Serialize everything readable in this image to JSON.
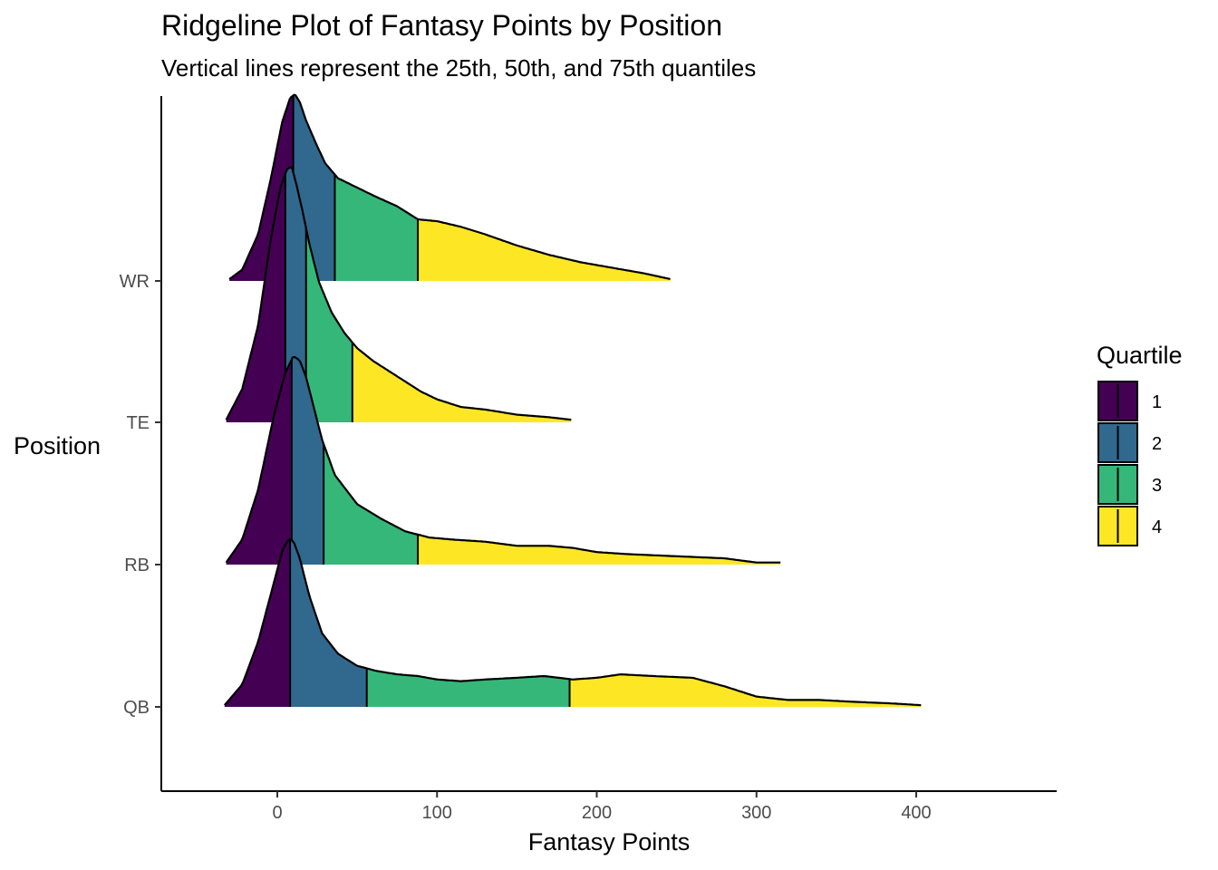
{
  "chart_data": {
    "type": "ridgeline",
    "title": "Ridgeline Plot of Fantasy Points by Position",
    "subtitle": "Vertical lines represent the 25th, 50th, and 75th quantiles",
    "xlabel": "Fantasy Points",
    "ylabel": "Position",
    "xlim": [
      -72,
      488
    ],
    "x_ticks": [
      0,
      100,
      200,
      300,
      400
    ],
    "categories": [
      "QB",
      "RB",
      "TE",
      "WR"
    ],
    "legend": {
      "title": "Quartile",
      "position": "right",
      "entries": [
        {
          "label": "1",
          "color": "#440154"
        },
        {
          "label": "2",
          "color": "#31688E"
        },
        {
          "label": "3",
          "color": "#35B779"
        },
        {
          "label": "4",
          "color": "#FDE725"
        }
      ]
    },
    "grid": false,
    "series": [
      {
        "category": "QB",
        "quantiles": [
          8,
          56,
          183
        ],
        "density_x": [
          -33,
          -22,
          -12,
          -2,
          3,
          7,
          10,
          14,
          20,
          28,
          38,
          50,
          62,
          75,
          88,
          100,
          115,
          130,
          150,
          167,
          185,
          200,
          215,
          235,
          260,
          280,
          300,
          320,
          340,
          360,
          385,
          403
        ],
        "density_y": [
          0.01,
          0.13,
          0.38,
          0.73,
          0.91,
          0.98,
          0.97,
          0.87,
          0.65,
          0.43,
          0.31,
          0.24,
          0.21,
          0.19,
          0.18,
          0.16,
          0.15,
          0.16,
          0.17,
          0.18,
          0.16,
          0.17,
          0.19,
          0.18,
          0.17,
          0.12,
          0.06,
          0.04,
          0.04,
          0.03,
          0.02,
          0.01
        ]
      },
      {
        "category": "RB",
        "quantiles": [
          9,
          29,
          88
        ],
        "density_x": [
          -32,
          -22,
          -12,
          -2,
          5,
          10,
          14,
          18,
          22,
          28,
          36,
          50,
          65,
          80,
          95,
          110,
          130,
          150,
          170,
          185,
          200,
          220,
          250,
          280,
          300,
          315
        ],
        "density_y": [
          0.01,
          0.12,
          0.36,
          0.72,
          0.92,
          1.0,
          0.98,
          0.9,
          0.78,
          0.6,
          0.43,
          0.29,
          0.22,
          0.16,
          0.13,
          0.12,
          0.11,
          0.09,
          0.09,
          0.08,
          0.06,
          0.05,
          0.04,
          0.03,
          0.01,
          0.01
        ]
      },
      {
        "category": "TE",
        "quantiles": [
          5,
          18,
          47
        ],
        "density_x": [
          -32,
          -22,
          -12,
          -4,
          2,
          6,
          9,
          12,
          16,
          20,
          26,
          34,
          42,
          50,
          60,
          70,
          80,
          90,
          100,
          115,
          130,
          150,
          170,
          184
        ],
        "density_y": [
          0.01,
          0.13,
          0.38,
          0.72,
          0.92,
          0.99,
          1.0,
          0.93,
          0.82,
          0.7,
          0.55,
          0.43,
          0.35,
          0.29,
          0.24,
          0.2,
          0.16,
          0.12,
          0.09,
          0.06,
          0.05,
          0.03,
          0.02,
          0.01
        ]
      },
      {
        "category": "WR",
        "quantiles": [
          10,
          36,
          88
        ],
        "density_x": [
          -30,
          -22,
          -12,
          -4,
          3,
          8,
          11,
          14,
          18,
          24,
          30,
          38,
          50,
          62,
          75,
          88,
          100,
          115,
          130,
          150,
          170,
          190,
          210,
          230,
          246
        ],
        "density_y": [
          0.01,
          0.06,
          0.25,
          0.55,
          0.85,
          0.98,
          1.0,
          0.96,
          0.86,
          0.74,
          0.63,
          0.55,
          0.5,
          0.45,
          0.4,
          0.33,
          0.32,
          0.29,
          0.25,
          0.19,
          0.14,
          0.1,
          0.07,
          0.04,
          0.01
        ]
      }
    ]
  }
}
